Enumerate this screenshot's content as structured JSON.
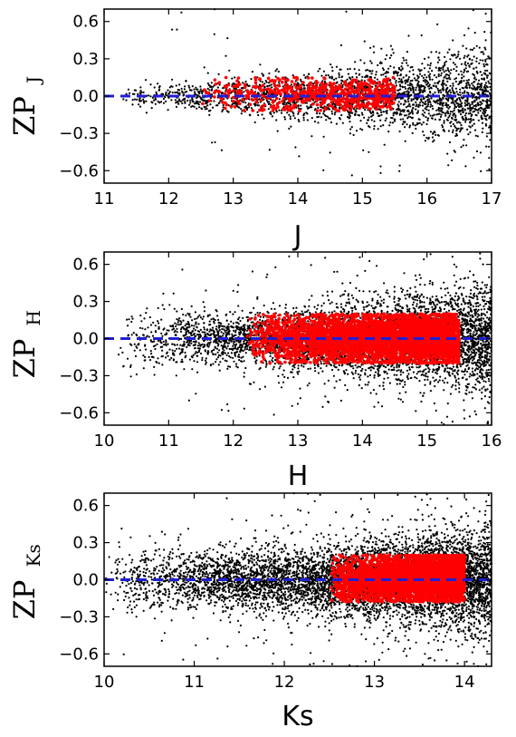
{
  "chart_data": [
    {
      "type": "scatter",
      "xlabel": "J",
      "ylabel_main": "ZP",
      "ylabel_sub": "J",
      "xlim": [
        11,
        17
      ],
      "ylim": [
        -0.7,
        0.7
      ],
      "xticks": [
        "11",
        "12",
        "13",
        "14",
        "15",
        "16",
        "17"
      ],
      "yticks": [
        "0.6",
        "0.3",
        "0.0",
        "−0.3",
        "−0.6"
      ],
      "reference_line": {
        "y": 0.0,
        "style": "dashed",
        "color": "#1f1fd6"
      },
      "series": [
        {
          "color": "#000000",
          "x_range": [
            11.2,
            17
          ],
          "count": 2600,
          "spread_center": 0.0,
          "notes_values": []
        },
        {
          "color": "#ff0000",
          "x_range": [
            12.5,
            15.5
          ],
          "count": 650,
          "y_range": [
            -0.12,
            0.15
          ]
        }
      ],
      "background_density": {
        "x": [
          11.2,
          12,
          13,
          14,
          15,
          16,
          17
        ],
        "sigma": [
          0.05,
          0.05,
          0.07,
          0.09,
          0.12,
          0.16,
          0.2
        ]
      }
    },
    {
      "type": "scatter",
      "xlabel": "H",
      "ylabel_main": "ZP",
      "ylabel_sub": "H",
      "xlim": [
        10,
        16
      ],
      "ylim": [
        -0.7,
        0.7
      ],
      "xticks": [
        "10",
        "11",
        "12",
        "13",
        "14",
        "15",
        "16"
      ],
      "yticks": [
        "0.6",
        "0.3",
        "0.0",
        "−0.3",
        "−0.6"
      ],
      "reference_line": {
        "y": 0.0,
        "style": "dashed",
        "color": "#1f1fd6"
      },
      "series": [
        {
          "color": "#000000",
          "x_range": [
            10.2,
            16
          ],
          "count": 5200
        },
        {
          "color": "#ff0000",
          "x_range": [
            12.2,
            15.5
          ],
          "count": 4200,
          "y_range": [
            -0.2,
            0.2
          ]
        }
      ],
      "background_density": {
        "x": [
          10.2,
          11,
          12,
          13,
          14,
          15,
          16
        ],
        "sigma": [
          0.16,
          0.12,
          0.1,
          0.12,
          0.15,
          0.18,
          0.22
        ]
      }
    },
    {
      "type": "scatter",
      "xlabel": "Ks",
      "ylabel_main": "ZP",
      "ylabel_sub": "Ks",
      "xlim": [
        10,
        14.3
      ],
      "ylim": [
        -0.7,
        0.7
      ],
      "xticks": [
        "10",
        "11",
        "12",
        "13",
        "14"
      ],
      "yticks": [
        "0.6",
        "0.3",
        "0.0",
        "−0.3",
        "−0.6"
      ],
      "reference_line": {
        "y": 0.0,
        "style": "dashed",
        "color": "#1f1fd6"
      },
      "series": [
        {
          "color": "#000000",
          "x_range": [
            10,
            14.3
          ],
          "count": 6500
        },
        {
          "color": "#ff0000",
          "x_range": [
            12.5,
            14.0
          ],
          "count": 4000,
          "y_range": [
            -0.18,
            0.2
          ]
        }
      ],
      "background_density": {
        "x": [
          10,
          11,
          12,
          13,
          14,
          14.3
        ],
        "sigma": [
          0.12,
          0.12,
          0.13,
          0.16,
          0.2,
          0.22
        ]
      }
    }
  ]
}
